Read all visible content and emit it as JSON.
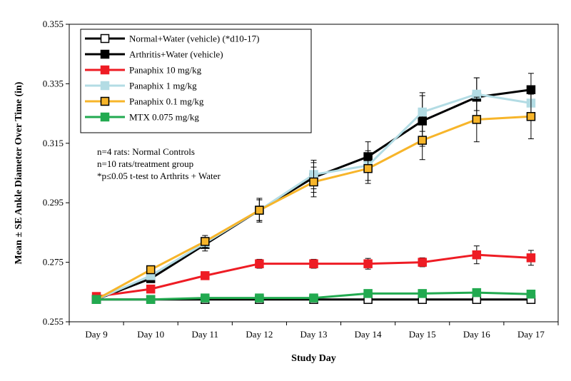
{
  "chart_data": {
    "type": "line",
    "title": "",
    "xlabel": "Study Day",
    "ylabel": "Mean ± SE Ankle Diameter Over Time (in)",
    "ylim": [
      0.255,
      0.355
    ],
    "yticks": [
      0.255,
      0.275,
      0.295,
      0.315,
      0.335,
      0.355
    ],
    "ytick_labels": [
      "0.255",
      "0.275",
      "0.295",
      "0.315",
      "0.335",
      "0.355"
    ],
    "grid": false,
    "legend_position": "top-left",
    "categories": [
      "Day 9",
      "Day 10",
      "Day 11",
      "Day 12",
      "Day 13",
      "Day 14",
      "Day 15",
      "Day 16",
      "Day 17"
    ],
    "series": [
      {
        "name": "Normal+Water (vehicle) (*d10-17)",
        "color": "#000000",
        "marker_fill": "#ffffff",
        "values": [
          0.2625,
          0.2625,
          0.2625,
          0.2625,
          0.2625,
          0.2625,
          0.2625,
          0.2625,
          0.2625
        ],
        "errors": [
          0,
          0,
          0,
          0,
          0,
          0,
          0,
          0,
          0
        ]
      },
      {
        "name": "Arthritis+Water (vehicle)",
        "color": "#000000",
        "marker_fill": "#000000",
        "values": [
          0.2625,
          0.2695,
          0.281,
          0.2925,
          0.3035,
          0.3105,
          0.3225,
          0.3305,
          0.333
        ],
        "errors": [
          0,
          0.001,
          0.0022,
          0.0035,
          0.005,
          0.005,
          0.0085,
          0.0065,
          0.0055
        ]
      },
      {
        "name": "Panaphix 10 mg/kg",
        "color": "#ee1c24",
        "marker_fill": "#ee1c24",
        "values": [
          0.2635,
          0.266,
          0.2705,
          0.2745,
          0.2745,
          0.2745,
          0.275,
          0.2775,
          0.2765
        ],
        "errors": [
          0,
          0.0005,
          0.0012,
          0.0015,
          0.0015,
          0.0018,
          0.0015,
          0.003,
          0.0025
        ]
      },
      {
        "name": "Panaphix 1 mg/kg",
        "color": "#b3dce4",
        "marker_fill": "#b3dce4",
        "values": [
          0.2625,
          0.2705,
          0.2815,
          0.2925,
          0.3045,
          0.3075,
          0.3255,
          0.3315,
          0.3285
        ],
        "errors": [
          0,
          0.001,
          0.0015,
          0.0035,
          0.0048,
          0.005,
          0.0065,
          0.0055,
          0.005
        ]
      },
      {
        "name": "Panaphix 0.1 mg/kg",
        "color": "#f7b52a",
        "marker_fill": "#f7b52a",
        "marker_stroke": "#000000",
        "values": [
          0.2625,
          0.2725,
          0.282,
          0.2925,
          0.302,
          0.3065,
          0.316,
          0.323,
          0.324
        ],
        "errors": [
          0,
          0.001,
          0.002,
          0.004,
          0.005,
          0.005,
          0.0065,
          0.0075,
          0.0075
        ]
      },
      {
        "name": "MTX 0.075 mg/kg",
        "color": "#22aa50",
        "marker_fill": "#22aa50",
        "values": [
          0.2625,
          0.2625,
          0.263,
          0.263,
          0.263,
          0.2645,
          0.2645,
          0.2648,
          0.2643
        ],
        "errors": [
          0,
          0,
          0,
          0,
          0,
          0,
          0,
          0,
          0
        ]
      }
    ],
    "annotations": [
      "n=4 rats: Normal Controls",
      "n=10 rats/treatment  group",
      "*p≤0.05 t-test to Arthrits + Water"
    ]
  }
}
